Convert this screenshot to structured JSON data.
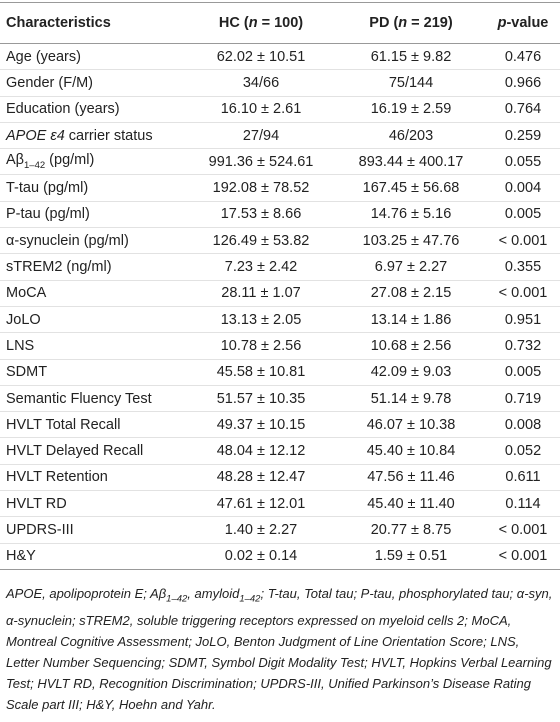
{
  "table": {
    "header": [
      "Characteristics",
      [
        "HC (",
        {
          "text": "n",
          "style": "italic"
        },
        " = 100)"
      ],
      [
        "PD (",
        {
          "text": "n",
          "style": "italic"
        },
        " = 219)"
      ],
      [
        {
          "text": "p",
          "style": "italic"
        },
        "-value"
      ]
    ],
    "rows": [
      [
        "Age (years)",
        "62.02 ± 10.51",
        "61.15 ± 9.82",
        "0.476"
      ],
      [
        "Gender (F/M)",
        "34/66",
        "75/144",
        "0.966"
      ],
      [
        "Education (years)",
        "16.10 ± 2.61",
        "16.19 ± 2.59",
        "0.764"
      ],
      [
        [
          {
            "text": "APOE ε4",
            "style": "italic"
          },
          " carrier status"
        ],
        "27/94",
        "46/203",
        "0.259"
      ],
      [
        [
          "Aβ",
          {
            "text": "1–42",
            "style": "sub"
          },
          " (pg/ml)"
        ],
        "991.36 ± 524.61",
        "893.44 ± 400.17",
        "0.055"
      ],
      [
        "T-tau (pg/ml)",
        "192.08 ± 78.52",
        "167.45 ± 56.68",
        "0.004"
      ],
      [
        "P-tau (pg/ml)",
        "17.53 ± 8.66",
        "14.76 ± 5.16",
        "0.005"
      ],
      [
        "α-synuclein (pg/ml)",
        "126.49 ± 53.82",
        "103.25 ± 47.76",
        "< 0.001"
      ],
      [
        "sTREM2 (ng/ml)",
        "7.23 ± 2.42",
        "6.97 ± 2.27",
        "0.355"
      ],
      [
        "MoCA",
        "28.11 ± 1.07",
        "27.08 ± 2.15",
        "< 0.001"
      ],
      [
        "JoLO",
        "13.13 ± 2.05",
        "13.14 ± 1.86",
        "0.951"
      ],
      [
        "LNS",
        "10.78 ± 2.56",
        "10.68 ± 2.56",
        "0.732"
      ],
      [
        "SDMT",
        "45.58 ± 10.81",
        "42.09 ± 9.03",
        "0.005"
      ],
      [
        "Semantic Fluency Test",
        "51.57 ± 10.35",
        "51.14 ± 9.78",
        "0.719"
      ],
      [
        "HVLT Total Recall",
        "49.37 ± 10.15",
        "46.07 ± 10.38",
        "0.008"
      ],
      [
        "HVLT Delayed Recall",
        "48.04 ± 12.12",
        "45.40 ± 10.84",
        "0.052"
      ],
      [
        "HVLT Retention",
        "48.28 ± 12.47",
        "47.56 ± 11.46",
        "0.611"
      ],
      [
        "HVLT RD",
        "47.61 ± 12.01",
        "45.40 ± 11.40",
        "0.114"
      ],
      [
        "UPDRS-III",
        "1.40 ± 2.27",
        "20.77 ± 8.75",
        "< 0.001"
      ],
      [
        "H&Y",
        "0.02 ± 0.14",
        "1.59 ± 0.51",
        "< 0.001"
      ]
    ],
    "footnote": [
      "APOE, apolipoprotein E; Aβ",
      {
        "text": "1–42",
        "style": "sub"
      },
      ", amyloid",
      {
        "text": "1–42",
        "style": "sub"
      },
      "; T-tau, Total tau; P-tau, phosphorylated tau; α-syn, α-synuclein; sTREM2, soluble triggering receptors expressed on myeloid cells 2; MoCA, Montreal Cognitive Assessment; JoLO, Benton Judgment of Line Orientation Score; LNS, Letter Number Sequencing; SDMT, Symbol Digit Modality Test; HVLT, Hopkins Verbal Learning Test; HVLT RD, Recognition Discrimination; UPDRS-III, Unified Parkinson’s Disease Rating Scale part III; H&Y, Hoehn and Yahr."
    ]
  }
}
